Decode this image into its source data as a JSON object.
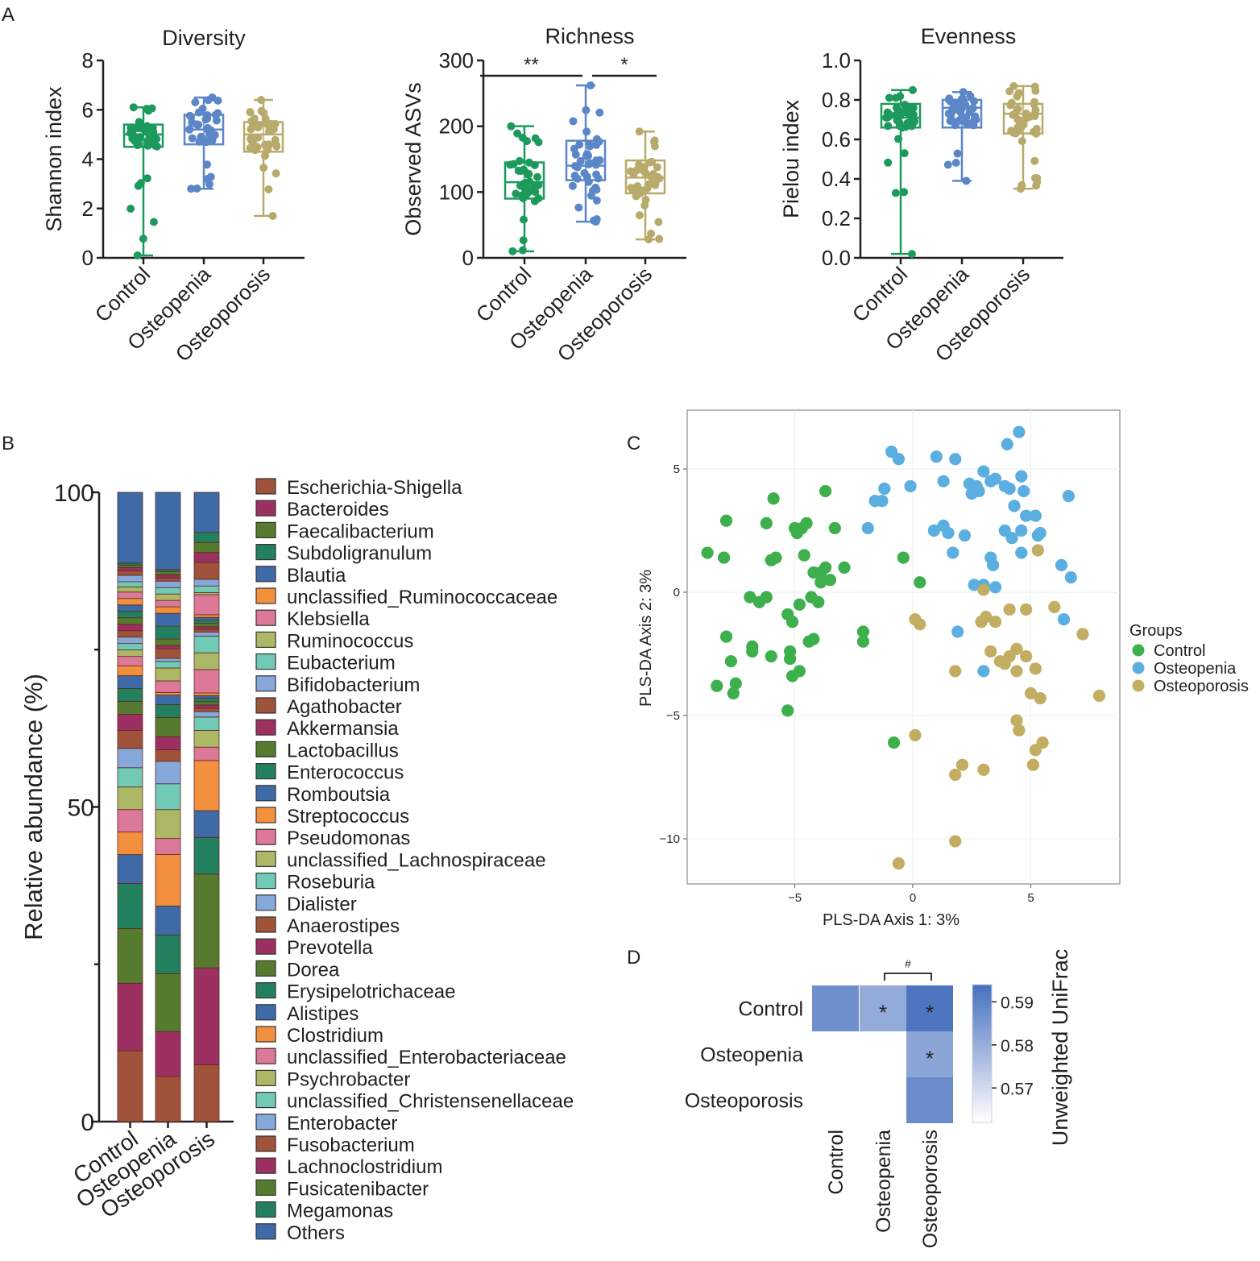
{
  "panel_labels": {
    "a": "A",
    "b": "B",
    "c": "C",
    "d": "D"
  },
  "colors": {
    "control": "#1c9a5c",
    "osteopenia": "#5b86c8",
    "osteoporosis": "#b8aa6a",
    "c_control": "#3daf4c",
    "c_osteopenia": "#5aaee0",
    "c_osteoporosis": "#c2ad62"
  },
  "chart_data": [
    {
      "id": "diversity",
      "type": "box-scatter",
      "title": "Diversity",
      "ylabel": "Shannon index",
      "categories": [
        "Control",
        "Osteopenia",
        "Osteoporosis"
      ],
      "ylim": [
        0,
        8
      ],
      "yticks": [
        "0",
        "2",
        "4",
        "6",
        "8"
      ],
      "groups": [
        {
          "name": "Control",
          "min": 0.1,
          "q1": 4.5,
          "median": 5.0,
          "q3": 5.4,
          "max": 6.1
        },
        {
          "name": "Osteopenia",
          "min": 2.8,
          "q1": 4.6,
          "median": 5.2,
          "q3": 5.8,
          "max": 6.5
        },
        {
          "name": "Osteoporosis",
          "min": 1.7,
          "q1": 4.3,
          "median": 5.0,
          "q3": 5.5,
          "max": 6.4
        }
      ],
      "significance": []
    },
    {
      "id": "richness",
      "type": "box-scatter",
      "title": "Richness",
      "ylabel": "Observed ASVs",
      "categories": [
        "Control",
        "Osteopenia",
        "Osteoporosis"
      ],
      "ylim": [
        0,
        300
      ],
      "yticks": [
        "0",
        "100",
        "200",
        "300"
      ],
      "groups": [
        {
          "name": "Control",
          "min": 10,
          "q1": 90,
          "median": 115,
          "q3": 145,
          "max": 200
        },
        {
          "name": "Osteopenia",
          "min": 55,
          "q1": 118,
          "median": 140,
          "q3": 178,
          "max": 262
        },
        {
          "name": "Osteoporosis",
          "min": 28,
          "q1": 98,
          "median": 122,
          "q3": 148,
          "max": 192
        }
      ],
      "significance": [
        {
          "from": 0,
          "to": 1,
          "label": "**"
        },
        {
          "from": 1,
          "to": 2,
          "label": "*"
        }
      ]
    },
    {
      "id": "evenness",
      "type": "box-scatter",
      "title": "Evenness",
      "ylabel": "Pielou index",
      "categories": [
        "Control",
        "Osteopenia",
        "Osteoporosis"
      ],
      "ylim": [
        0,
        1
      ],
      "yticks": [
        "0.0",
        "0.2",
        "0.4",
        "0.6",
        "0.8",
        "1.0"
      ],
      "groups": [
        {
          "name": "Control",
          "min": 0.02,
          "q1": 0.66,
          "median": 0.71,
          "q3": 0.78,
          "max": 0.85
        },
        {
          "name": "Osteopenia",
          "min": 0.39,
          "q1": 0.66,
          "median": 0.76,
          "q3": 0.8,
          "max": 0.84
        },
        {
          "name": "Osteoporosis",
          "min": 0.35,
          "q1": 0.63,
          "median": 0.73,
          "q3": 0.78,
          "max": 0.87
        }
      ],
      "significance": []
    },
    {
      "id": "composition",
      "type": "stacked-bar",
      "ylabel": "Relative abundance (%)",
      "categories": [
        "Control",
        "Osteopenia",
        "Osteoporosis"
      ],
      "ylim": [
        0,
        100
      ],
      "yticks": [
        "0",
        "50",
        "100"
      ],
      "palette": [
        "#a0523a",
        "#9c3060",
        "#567a2e",
        "#23805e",
        "#3e6aa8",
        "#f3903e",
        "#dc7898",
        "#adb866",
        "#70cab5",
        "#86a8da"
      ],
      "text_palette": [
        "#7a2c16",
        "#6e1538",
        "#3c5a1a",
        "#145a40",
        "#1f3f72",
        "#d86830",
        "#b84468",
        "#6f8a28",
        "#2f9a80",
        "#4a78b8"
      ],
      "series": [
        {
          "name": "Escherichia-Shigella",
          "values": [
            11,
            7,
            8.5
          ]
        },
        {
          "name": "Bacteroides",
          "values": [
            10.5,
            7,
            14.5
          ]
        },
        {
          "name": "Faecalibacterium",
          "values": [
            8.5,
            9,
            14
          ]
        },
        {
          "name": "Subdoligranulum",
          "values": [
            7,
            6,
            5.5
          ]
        },
        {
          "name": "Blautia",
          "values": [
            4.5,
            4.5,
            4
          ]
        },
        {
          "name": "unclassified_Ruminococcaceae",
          "values": [
            3.5,
            8,
            7.5
          ]
        },
        {
          "name": "Klebsiella",
          "values": [
            3.5,
            2.5,
            2
          ]
        },
        {
          "name": "Ruminococcus",
          "values": [
            3.5,
            4.5,
            2.5
          ]
        },
        {
          "name": "Eubacterium",
          "values": [
            3,
            4,
            2
          ]
        },
        {
          "name": "Bifidobacterium",
          "values": [
            3,
            3.5,
            0.8
          ]
        },
        {
          "name": "Agathobacter",
          "values": [
            2.8,
            1.8,
            0.5
          ]
        },
        {
          "name": "Akkermansia",
          "values": [
            2.5,
            2,
            0.5
          ]
        },
        {
          "name": "Lactobacillus",
          "values": [
            2,
            3,
            0.5
          ]
        },
        {
          "name": "Enterococcus",
          "values": [
            2,
            2,
            0.5
          ]
        },
        {
          "name": "Romboutsia",
          "values": [
            2,
            1.5,
            0.4
          ]
        },
        {
          "name": "Streptococcus",
          "values": [
            1.5,
            0.4,
            0.4
          ]
        },
        {
          "name": "Pseudomonas",
          "values": [
            1.5,
            1.8,
            3.5
          ]
        },
        {
          "name": "unclassified_Lachnospiraceae",
          "values": [
            1,
            2,
            2.5
          ]
        },
        {
          "name": "Roseburia",
          "values": [
            1,
            1,
            2.5
          ]
        },
        {
          "name": "Dialister",
          "values": [
            1,
            0.5,
            0.6
          ]
        },
        {
          "name": "Anaerostipes",
          "values": [
            1,
            1.5,
            0.4
          ]
        },
        {
          "name": "Prevotella",
          "values": [
            1,
            0.5,
            0.4
          ]
        },
        {
          "name": "Dorea",
          "values": [
            1,
            1,
            0.5
          ]
        },
        {
          "name": "Erysipelotrichaceae",
          "values": [
            1,
            2,
            0.5
          ]
        },
        {
          "name": "Alistipes",
          "values": [
            1,
            2,
            0.4
          ]
        },
        {
          "name": "Clostridium",
          "values": [
            1,
            1,
            0.4
          ]
        },
        {
          "name": "unclassified_Enterobacteriaceae",
          "values": [
            1,
            1,
            3
          ]
        },
        {
          "name": "Psychrobacter",
          "values": [
            0.8,
            1,
            0.3
          ]
        },
        {
          "name": "unclassified_Christensenellaceae",
          "values": [
            0.8,
            1,
            1
          ]
        },
        {
          "name": "Enterobacter",
          "values": [
            1,
            1,
            1
          ]
        },
        {
          "name": "Fusobacterium",
          "values": [
            0.7,
            0.5,
            2.5
          ]
        },
        {
          "name": "Lachnoclostridium",
          "values": [
            0.5,
            0.5,
            1.5
          ]
        },
        {
          "name": "Fusicatenibacter",
          "values": [
            0.4,
            0.5,
            1.5
          ]
        },
        {
          "name": "Megamonas",
          "values": [
            0.3,
            0.3,
            1.5
          ]
        },
        {
          "name": "Others",
          "values": [
            11,
            12,
            6
          ]
        }
      ]
    },
    {
      "id": "plsda",
      "type": "scatter",
      "xlabel": "PLS-DA Axis 1: 3%",
      "ylabel": "PLS-DA Axis 2: 3%",
      "xlim": [
        -9,
        9
      ],
      "ylim": [
        -12,
        7
      ],
      "xticks": [
        {
          "v": -5,
          "label": "−5"
        },
        {
          "v": 0,
          "label": "0"
        },
        {
          "v": 5,
          "label": "5"
        }
      ],
      "yticks": [
        {
          "v": 5,
          "label": "5"
        },
        {
          "v": 0,
          "label": "0"
        },
        {
          "v": -5,
          "label": "−5"
        },
        {
          "v": -10,
          "label": "−10"
        }
      ],
      "legend_title": "Groups",
      "legend_position": "right",
      "series": [
        {
          "name": "Control",
          "points": [
            [
              -8.7,
              1.6
            ],
            [
              -8.0,
              1.4
            ],
            [
              -7.9,
              2.9
            ],
            [
              -7.9,
              -1.8
            ],
            [
              -7.7,
              -2.8
            ],
            [
              -8.3,
              -3.8
            ],
            [
              -7.5,
              -3.7
            ],
            [
              -7.6,
              -4.1
            ],
            [
              -6.8,
              -2.2
            ],
            [
              -6.8,
              -2.4
            ],
            [
              -6.5,
              -0.4
            ],
            [
              -6.9,
              -0.2
            ],
            [
              -6.2,
              -0.2
            ],
            [
              -6.0,
              1.3
            ],
            [
              -5.8,
              1.4
            ],
            [
              -5.9,
              3.8
            ],
            [
              -6.2,
              2.8
            ],
            [
              -6.0,
              -2.6
            ],
            [
              -5.2,
              -2.4
            ],
            [
              -5.3,
              -0.9
            ],
            [
              -5.1,
              -1.2
            ],
            [
              -5.2,
              -2.7
            ],
            [
              -5.1,
              -3.4
            ],
            [
              -4.8,
              -3.2
            ],
            [
              -5.3,
              -4.8
            ],
            [
              -5.0,
              2.6
            ],
            [
              -4.7,
              2.6
            ],
            [
              -4.5,
              2.8
            ],
            [
              -4.9,
              2.4
            ],
            [
              -4.6,
              1.5
            ],
            [
              -4.2,
              0.8
            ],
            [
              -3.9,
              0.4
            ],
            [
              -3.7,
              1.0
            ],
            [
              -3.5,
              0.5
            ],
            [
              -4.8,
              -0.5
            ],
            [
              -4.3,
              -0.2
            ],
            [
              -4.0,
              -0.4
            ],
            [
              -4.2,
              -1.9
            ],
            [
              -4.4,
              -2.0
            ],
            [
              -3.9,
              0.8
            ],
            [
              -3.7,
              4.1
            ],
            [
              -3.3,
              2.6
            ],
            [
              -2.9,
              1.0
            ],
            [
              -2.1,
              -1.6
            ],
            [
              -2.1,
              -2.0
            ],
            [
              -0.4,
              1.4
            ],
            [
              0.3,
              0.4
            ],
            [
              -0.8,
              -6.1
            ]
          ]
        },
        {
          "name": "Osteopenia",
          "points": [
            [
              -0.9,
              5.7
            ],
            [
              -0.6,
              5.4
            ],
            [
              1.0,
              5.5
            ],
            [
              1.3,
              4.5
            ],
            [
              1.8,
              5.4
            ],
            [
              2.4,
              4.4
            ],
            [
              2.7,
              4.3
            ],
            [
              2.5,
              4.0
            ],
            [
              3.0,
              4.9
            ],
            [
              2.8,
              4.1
            ],
            [
              3.3,
              4.5
            ],
            [
              3.5,
              4.6
            ],
            [
              3.9,
              4.3
            ],
            [
              4.0,
              6.0
            ],
            [
              4.5,
              6.5
            ],
            [
              4.6,
              4.7
            ],
            [
              4.7,
              4.1
            ],
            [
              4.1,
              4.2
            ],
            [
              4.3,
              3.5
            ],
            [
              4.8,
              3.1
            ],
            [
              5.2,
              3.1
            ],
            [
              5.4,
              2.4
            ],
            [
              5.3,
              2.3
            ],
            [
              4.6,
              2.5
            ],
            [
              6.6,
              3.9
            ],
            [
              6.3,
              1.1
            ],
            [
              6.7,
              0.6
            ],
            [
              6.4,
              -1.1
            ],
            [
              -1.2,
              4.2
            ],
            [
              -1.3,
              3.7
            ],
            [
              -1.6,
              3.7
            ],
            [
              -0.1,
              4.3
            ],
            [
              0.9,
              2.5
            ],
            [
              1.3,
              2.7
            ],
            [
              1.5,
              2.4
            ],
            [
              1.7,
              1.6
            ],
            [
              2.2,
              2.3
            ],
            [
              2.6,
              0.3
            ],
            [
              3.0,
              0.3
            ],
            [
              3.5,
              0.2
            ],
            [
              3.3,
              1.4
            ],
            [
              3.9,
              2.5
            ],
            [
              4.2,
              2.2
            ],
            [
              4.6,
              1.6
            ],
            [
              3.4,
              1.1
            ],
            [
              -1.9,
              2.6
            ],
            [
              1.9,
              -1.6
            ],
            [
              3.0,
              -3.2
            ]
          ]
        },
        {
          "name": "Osteoporosis",
          "points": [
            [
              5.3,
              1.7
            ],
            [
              3.0,
              0.1
            ],
            [
              4.1,
              -0.7
            ],
            [
              4.8,
              -0.7
            ],
            [
              6.0,
              -0.6
            ],
            [
              7.2,
              -1.7
            ],
            [
              7.9,
              -4.2
            ],
            [
              2.9,
              -1.2
            ],
            [
              3.1,
              -1.0
            ],
            [
              3.5,
              -1.2
            ],
            [
              3.3,
              -2.4
            ],
            [
              3.7,
              -2.8
            ],
            [
              3.9,
              -2.9
            ],
            [
              4.1,
              -2.6
            ],
            [
              4.4,
              -2.3
            ],
            [
              4.4,
              -3.2
            ],
            [
              4.8,
              -2.6
            ],
            [
              5.2,
              -3.1
            ],
            [
              5.0,
              -4.1
            ],
            [
              5.4,
              -4.3
            ],
            [
              4.4,
              -5.2
            ],
            [
              4.5,
              -5.6
            ],
            [
              5.2,
              -6.4
            ],
            [
              5.5,
              -6.1
            ],
            [
              5.1,
              -7.0
            ],
            [
              0.1,
              -1.1
            ],
            [
              0.3,
              -1.3
            ],
            [
              1.8,
              -3.2
            ],
            [
              0.1,
              -5.8
            ],
            [
              2.1,
              -7.0
            ],
            [
              1.8,
              -7.4
            ],
            [
              3.0,
              -7.2
            ],
            [
              1.8,
              -10.1
            ],
            [
              -0.6,
              -11.0
            ]
          ]
        }
      ]
    },
    {
      "id": "unifrac",
      "type": "heatmap",
      "colorbar_label": "Unweighted UniFrac",
      "rows": [
        "Control",
        "Osteopenia",
        "Osteoporosis"
      ],
      "cols": [
        "Control",
        "Osteopenia",
        "Osteoporosis"
      ],
      "values": [
        [
          0.5868,
          0.5808,
          0.5928
        ],
        [
          null,
          null,
          0.5822
        ],
        [
          null,
          null,
          0.5878
        ]
      ],
      "marks": [
        [
          "",
          "*",
          "*"
        ],
        [
          "",
          "",
          "*"
        ],
        [
          "",
          "",
          ""
        ]
      ],
      "colorbar_range": [
        0.562,
        0.594
      ],
      "colorbar_ticks": [
        {
          "v": 0.59,
          "label": "0.59"
        },
        {
          "v": 0.58,
          "label": "0.58"
        },
        {
          "v": 0.57,
          "label": "0.57"
        }
      ],
      "bracket_label": "#"
    }
  ]
}
